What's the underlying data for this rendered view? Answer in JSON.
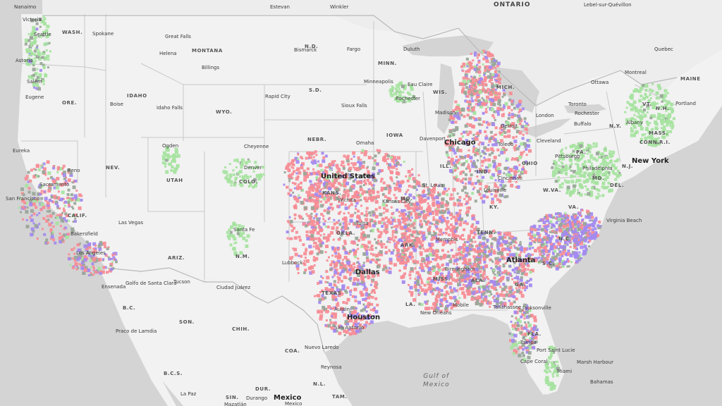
{
  "colors": {
    "water": "#d4d4d4",
    "land": "#f2f2f2",
    "land_canada": "#ededed",
    "border": "#c4c4c4",
    "pink": "#f78d96",
    "purple": "#a38aef",
    "gray": "#9aa69a",
    "green": "#a6e3a0"
  },
  "labels": {
    "country_us": "United States",
    "country_mx": "Mexico",
    "water_gulf_1": "Gulf of",
    "water_gulf_2": "Mexico",
    "region_ontario": "ONTARIO",
    "region_quebec": "Quebec",
    "region_maine": "MAINE",
    "states": [
      "WASH.",
      "ORE.",
      "CALIF.",
      "NEV.",
      "IDAHO",
      "MONTANA",
      "WYO.",
      "UTAH",
      "ARIZ.",
      "COLO.",
      "N.M.",
      "TEXAS",
      "N.D.",
      "S.D.",
      "NEBR.",
      "KANS.",
      "OKLA.",
      "MINN.",
      "IOWA",
      "MO.",
      "ARK.",
      "LA.",
      "WIS.",
      "ILL.",
      "MICH.",
      "IND.",
      "OHIO",
      "KY.",
      "TENN.",
      "MISS.",
      "ALA.",
      "GA.",
      "FLA.",
      "S.C.",
      "N.C.",
      "VA.",
      "W.VA.",
      "PA.",
      "N.Y.",
      "VT.",
      "N.H.",
      "MASS.",
      "CONN.",
      "R.I.",
      "N.J.",
      "DEL.",
      "MD.",
      "B.C.",
      "SON.",
      "CHIH.",
      "COA.",
      "N.L.",
      "TAM.",
      "DUR.",
      "SIN.",
      "B.C.S."
    ],
    "cities": [
      "Nanaimo",
      "Victoria",
      "Seattle",
      "Spokane",
      "Astoria",
      "Salem",
      "Eugene",
      "Great Falls",
      "Helena",
      "Billings",
      "Boise",
      "Idaho Falls",
      "Eureka",
      "Reno",
      "Sacramento",
      "San Francisco",
      "Bakersfield",
      "Los Angeles",
      "Las Vegas",
      "Ensenada",
      "Golfo de Santa Clara",
      "Tucson",
      "Ogden",
      "Denver",
      "Cheyenne",
      "Santa Fe",
      "Lubbock",
      "Ciudad Juárez",
      "Estevan",
      "Winkler",
      "Bismarck",
      "Fargo",
      "Duluth",
      "Rapid City",
      "Sioux Falls",
      "Omaha",
      "Wichita",
      "Tulsa",
      "Dallas",
      "Austin",
      "Houston",
      "San Antonio",
      "Nuevo Laredo",
      "Reynosa",
      "Minneapolis",
      "Rochester",
      "Eau Claire",
      "Madison",
      "Chicago",
      "Davenport",
      "Kansas City",
      "St. Louis",
      "Memphis",
      "New Orleans",
      "Birmingham",
      "Mobile",
      "Atlanta",
      "Tallahassee",
      "Jacksonville",
      "Tampa",
      "Port Saint Lucie",
      "Cape Coral",
      "Miami",
      "Marsh Harbour",
      "Bahamas",
      "Detroit",
      "Toledo",
      "Cleveland",
      "Pittsburgh",
      "Cincinnati",
      "Louisville",
      "London",
      "Toronto",
      "Rochester",
      "Buffalo",
      "Ottawa",
      "Montreal",
      "Albany",
      "Portland",
      "Philadelphia",
      "New York",
      "Virginia Beach",
      "Lebel-sur-Quévillon",
      "Praco de Lamdia",
      "La Paz",
      "Mazatlán",
      "Durango",
      "Mexico"
    ],
    "cities_big": [
      "United States",
      "Chicago",
      "New York",
      "Dallas",
      "Houston",
      "Atlanta",
      "Mexico"
    ]
  },
  "map_data": {
    "cluster_legend": [
      {
        "name": "pink"
      },
      {
        "name": "purple"
      },
      {
        "name": "gray"
      },
      {
        "name": "green"
      }
    ]
  }
}
